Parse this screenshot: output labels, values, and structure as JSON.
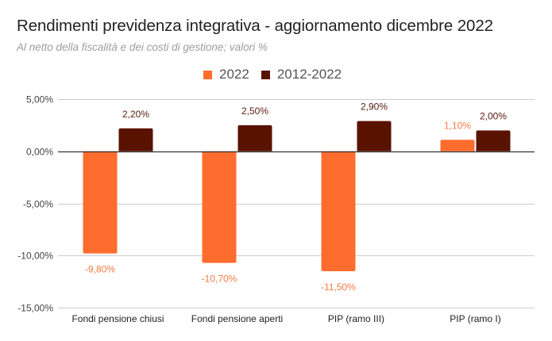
{
  "chart_data": {
    "type": "bar",
    "title": "Rendimenti previdenza integrativa - aggiornamento dicembre 2022",
    "subtitle": "Al netto della fiscalità e dei costi di gestione; valori %",
    "xlabel": "",
    "ylabel": "",
    "categories": [
      "Fondi pensione chiusi",
      "Fondi pensione aperti",
      "PIP (ramo III)",
      "PIP (ramo I)"
    ],
    "series": [
      {
        "name": "2022",
        "color": "#FF6D2E",
        "label_color": "#F47B45",
        "values": [
          -9.8,
          -10.7,
          -11.5,
          1.1
        ],
        "labels": [
          "-9,80%",
          "-10,70%",
          "-11,50%",
          "1,10%"
        ]
      },
      {
        "name": "2012-2022",
        "color": "#5A1200",
        "label_color": "#5A1A10",
        "values": [
          2.2,
          2.5,
          2.9,
          2.0
        ],
        "labels": [
          "2,20%",
          "2,50%",
          "2,90%",
          "2,00%"
        ]
      }
    ],
    "ylim": [
      -15,
      5
    ],
    "yticks": [
      5,
      0,
      -5,
      -10,
      -15
    ],
    "ytick_labels": [
      "5,00%",
      "0,00%",
      "-5,00%",
      "-10,00%",
      "-15,00%"
    ],
    "grid": true,
    "legend_position": "top-center"
  }
}
